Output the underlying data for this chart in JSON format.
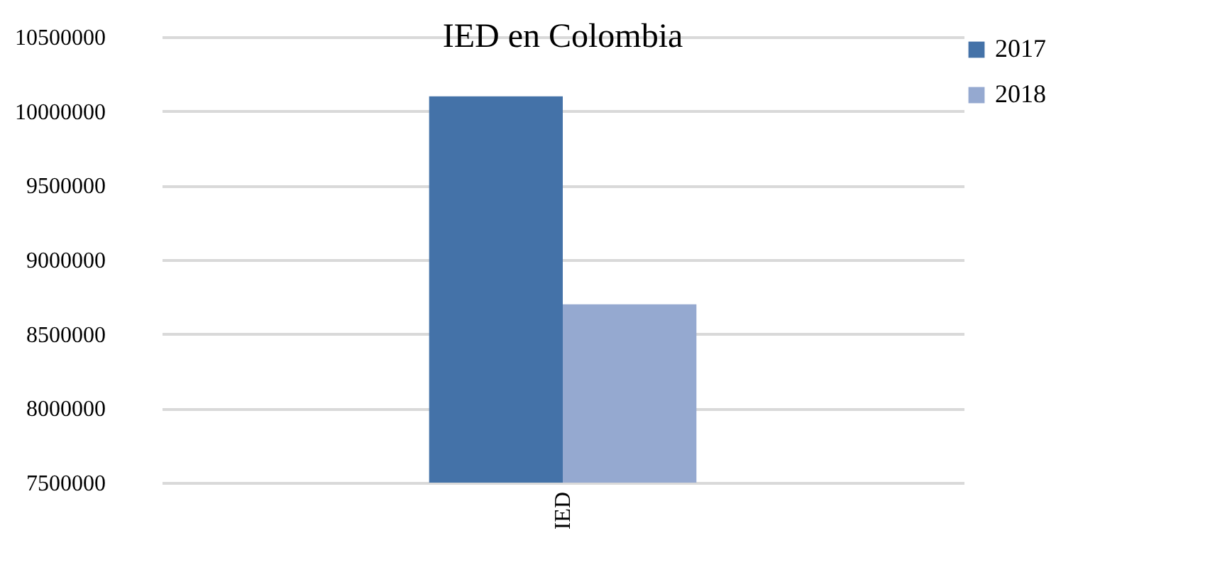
{
  "chart_data": {
    "type": "bar",
    "title": "IED en Colombia",
    "categories": [
      "IED"
    ],
    "series": [
      {
        "name": "2017",
        "color": "#4472a8",
        "values": [
          10100000
        ]
      },
      {
        "name": "2018",
        "color": "#95a9d0",
        "values": [
          8700000
        ]
      }
    ],
    "ylim": [
      7500000,
      10500000
    ],
    "yticks": [
      7500000,
      8000000,
      8500000,
      9000000,
      9500000,
      10000000,
      10500000
    ],
    "grid": "y",
    "legend": "right"
  }
}
